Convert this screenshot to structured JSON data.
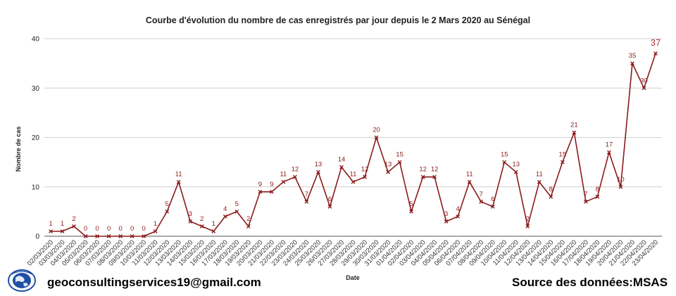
{
  "footer": {
    "email": "geoconsultingservices19@gmail.com",
    "source": "Source des données:MSAS"
  },
  "colors": {
    "series": "#8b1a1a",
    "grid": "#cfcfcf",
    "logo": "#1f4fa3"
  },
  "chart_data": {
    "type": "line",
    "title": "Courbe d'évolution du nombre de cas enregistrés par jour depuis le 2 Mars 2020 au Sénégal",
    "xlabel": "Date",
    "ylabel": "Nombre de cas",
    "ylim": [
      0,
      40
    ],
    "yticks": [
      0,
      10,
      20,
      30,
      40
    ],
    "grid": true,
    "x": [
      "02/03/2020",
      "03/03/2020",
      "04/03/2020",
      "05/03/2020",
      "06/03/2020",
      "07/03/2020",
      "08/03/2020",
      "09/03/2020",
      "10/03/2020",
      "11/03/2020",
      "12/03/2020",
      "13/03/2020",
      "14/03/2020",
      "15/03/2020",
      "16/03/2020",
      "17/03/2020",
      "18/03/2020",
      "19/03/2020",
      "20/03/2020",
      "21/03/2020",
      "22/03/2020",
      "23/03/2020",
      "24/03/2020",
      "25/03/2020",
      "26/03/2020",
      "27/03/2020",
      "28/03/2020",
      "29/03/2020",
      "30/03/2020",
      "31/03/2020",
      "01/04/2020",
      "02/04/2020",
      "03/04/2020",
      "04/04/2020",
      "05/04/2020",
      "06/04/2020",
      "07/04/2020",
      "08/04/2020",
      "09/04/2020",
      "10/04/2020",
      "11/04/2020",
      "12/04/2020",
      "13/04/2020",
      "14/04/2020",
      "15/04/2020",
      "16/04/2020",
      "17/04/2020",
      "18/04/2020",
      "19/04/2020",
      "20/04/2020",
      "21/04/2020",
      "22/04/2020",
      "23/04/2020"
    ],
    "xtick_labels": [
      "02/03/2020",
      "03/03/2020",
      "04/03/2020",
      "05/03/2020",
      "06/03/2020",
      "07/03/2020",
      "08/03/2020",
      "09/03/2020",
      "10/03/2020",
      "11/03/2020",
      "12/03/2020",
      "13/03/2020",
      "14/03/2020",
      "15/03/2020",
      "16/03/2020",
      "17/03/2020",
      "18/03/2020",
      "19/03/2020",
      "20/03/2020",
      "21/03/2020",
      "22/03/2020",
      "23/03/2020",
      "24/03/2020",
      "25/03/2020",
      "26/03/2020",
      "27/03/2020",
      "28/03/2020",
      "29/03/2020",
      "30/03/2020",
      "31/03/2020",
      "01/04/2020",
      "02/04/2020",
      "03/04/2020",
      "04/04/2020",
      "05/04/2020",
      "06/04/2020",
      "07/04/2020",
      "08/04/2020",
      "09/04/2020",
      "10/04/2020",
      "11/04/2020",
      "12/04/2020",
      "13/04/2020",
      "14/04/2020",
      "15/04/2020",
      "16/04/2020",
      "17/04/2020",
      "18/04/2020",
      "19/04/2020",
      "20/04/2020",
      "21/04/2020",
      "22/04/2020",
      "23/04/2020"
    ],
    "values": [
      1,
      1,
      2,
      0,
      0,
      0,
      0,
      0,
      0,
      1,
      5,
      11,
      3,
      2,
      1,
      4,
      5,
      2,
      9,
      9,
      11,
      12,
      7,
      13,
      6,
      14,
      11,
      12,
      20,
      13,
      15,
      5,
      12,
      12,
      3,
      4,
      11,
      7,
      6,
      15,
      13,
      2,
      11,
      8,
      15,
      21,
      7,
      8,
      17,
      10,
      35,
      30,
      37
    ]
  }
}
